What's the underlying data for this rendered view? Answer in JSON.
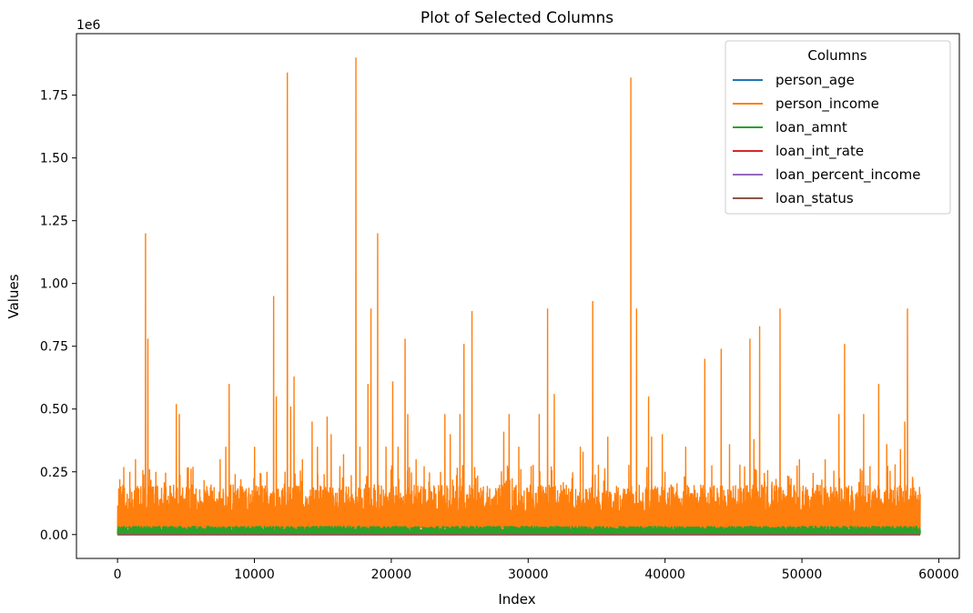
{
  "chart_data": {
    "type": "line",
    "title": "Plot of Selected Columns",
    "xlabel": "Index",
    "ylabel": "Values",
    "y_scale_label": "1e6",
    "xlim": [
      -3000,
      61500
    ],
    "ylim": [
      -0.095,
      1.995
    ],
    "x_ticks": [
      0,
      10000,
      20000,
      30000,
      40000,
      50000,
      60000
    ],
    "y_ticks": [
      0.0,
      0.25,
      0.5,
      0.75,
      1.0,
      1.25,
      1.5,
      1.75
    ],
    "y_tick_labels": [
      "0.00",
      "0.25",
      "0.50",
      "0.75",
      "1.00",
      "1.25",
      "1.50",
      "1.75"
    ],
    "n_points": 58645,
    "legend": {
      "title": "Columns",
      "position": "upper right"
    },
    "series": [
      {
        "name": "person_age",
        "color": "#1f77b4",
        "baseline": 3e-05,
        "range": [
          2e-05,
          0.00012
        ]
      },
      {
        "name": "person_income",
        "color": "#ff7f0e",
        "baseline": 0.06,
        "band": [
          0.03,
          0.2
        ],
        "spikes": [
          [
            150,
            0.22
          ],
          [
            900,
            0.25
          ],
          [
            1300,
            0.3
          ],
          [
            2050,
            1.2
          ],
          [
            2200,
            0.78
          ],
          [
            2800,
            0.25
          ],
          [
            4300,
            0.52
          ],
          [
            4500,
            0.48
          ],
          [
            5500,
            0.27
          ],
          [
            7500,
            0.3
          ],
          [
            7900,
            0.35
          ],
          [
            8150,
            0.6
          ],
          [
            9000,
            0.22
          ],
          [
            10000,
            0.35
          ],
          [
            10900,
            0.25
          ],
          [
            11400,
            0.95
          ],
          [
            11600,
            0.55
          ],
          [
            12400,
            1.84
          ],
          [
            12650,
            0.51
          ],
          [
            12900,
            0.63
          ],
          [
            13500,
            0.3
          ],
          [
            14200,
            0.45
          ],
          [
            14600,
            0.35
          ],
          [
            15300,
            0.47
          ],
          [
            15600,
            0.4
          ],
          [
            16500,
            0.32
          ],
          [
            17400,
            1.9
          ],
          [
            17700,
            0.35
          ],
          [
            18300,
            0.6
          ],
          [
            18500,
            0.9
          ],
          [
            19000,
            1.2
          ],
          [
            19600,
            0.35
          ],
          [
            20100,
            0.61
          ],
          [
            20500,
            0.35
          ],
          [
            21000,
            0.78
          ],
          [
            21200,
            0.48
          ],
          [
            21800,
            0.3
          ],
          [
            23900,
            0.48
          ],
          [
            24300,
            0.4
          ],
          [
            25000,
            0.48
          ],
          [
            25300,
            0.76
          ],
          [
            25900,
            0.89
          ],
          [
            28200,
            0.41
          ],
          [
            28600,
            0.48
          ],
          [
            29300,
            0.35
          ],
          [
            30800,
            0.48
          ],
          [
            31400,
            0.9
          ],
          [
            31900,
            0.56
          ],
          [
            33800,
            0.35
          ],
          [
            34000,
            0.33
          ],
          [
            34700,
            0.93
          ],
          [
            35800,
            0.39
          ],
          [
            37500,
            1.82
          ],
          [
            37900,
            0.9
          ],
          [
            38800,
            0.55
          ],
          [
            39000,
            0.39
          ],
          [
            39800,
            0.4
          ],
          [
            41500,
            0.35
          ],
          [
            42900,
            0.7
          ],
          [
            44100,
            0.74
          ],
          [
            44700,
            0.36
          ],
          [
            46200,
            0.78
          ],
          [
            46500,
            0.38
          ],
          [
            46900,
            0.83
          ],
          [
            48400,
            0.9
          ],
          [
            49800,
            0.3
          ],
          [
            51700,
            0.3
          ],
          [
            52700,
            0.48
          ],
          [
            53100,
            0.76
          ],
          [
            54500,
            0.48
          ],
          [
            55600,
            0.6
          ],
          [
            56200,
            0.36
          ],
          [
            56800,
            0.28
          ],
          [
            57200,
            0.34
          ],
          [
            57500,
            0.45
          ],
          [
            57700,
            0.9
          ],
          [
            58100,
            0.22
          ]
        ]
      },
      {
        "name": "loan_amnt",
        "color": "#2ca02c",
        "baseline": 0.009,
        "range": [
          0.0005,
          0.035
        ]
      },
      {
        "name": "loan_int_rate",
        "color": "#d62728",
        "baseline": 1e-05,
        "range": [
          5e-06,
          2.3e-05
        ]
      },
      {
        "name": "loan_percent_income",
        "color": "#9467bd",
        "baseline": 2e-07,
        "range": [
          0.0,
          8e-07
        ]
      },
      {
        "name": "loan_status",
        "color": "#8c564b",
        "baseline": 0.0,
        "range": [
          0.0,
          1e-06
        ]
      }
    ]
  }
}
